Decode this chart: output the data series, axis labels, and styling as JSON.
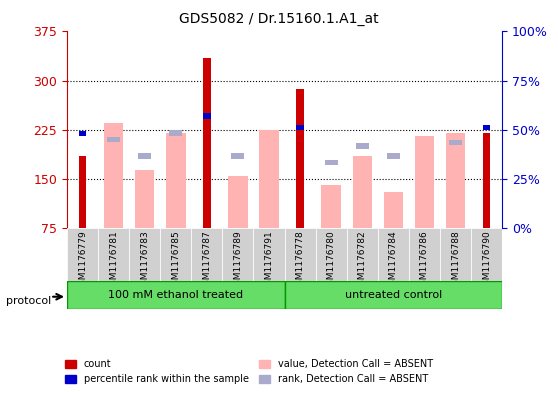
{
  "title": "GDS5082 / Dr.15160.1.A1_at",
  "samples": [
    "GSM1176779",
    "GSM1176781",
    "GSM1176783",
    "GSM1176785",
    "GSM1176787",
    "GSM1176789",
    "GSM1176791",
    "GSM1176778",
    "GSM1176780",
    "GSM1176782",
    "GSM1176784",
    "GSM1176786",
    "GSM1176788",
    "GSM1176790"
  ],
  "count_values": [
    185,
    0,
    0,
    0,
    335,
    0,
    0,
    287,
    0,
    0,
    0,
    0,
    0,
    220
  ],
  "percentile_values": [
    48,
    0,
    0,
    0,
    57,
    0,
    0,
    51,
    0,
    0,
    0,
    0,
    0,
    51
  ],
  "absent_value_values": [
    0,
    235,
    163,
    220,
    0,
    155,
    225,
    0,
    140,
    185,
    130,
    215,
    220,
    0
  ],
  "absent_rank_values": [
    0,
    210,
    185,
    220,
    0,
    185,
    0,
    0,
    175,
    200,
    185,
    0,
    205,
    0
  ],
  "ylim_left": [
    75,
    375
  ],
  "ylim_right": [
    0,
    100
  ],
  "yticks_left": [
    75,
    150,
    225,
    300,
    375
  ],
  "yticks_right": [
    0,
    25,
    50,
    75,
    100
  ],
  "group1_label": "100 mM ethanol treated",
  "group2_label": "untreated control",
  "group1_indices": [
    0,
    1,
    2,
    3,
    4,
    5,
    6
  ],
  "group2_indices": [
    7,
    8,
    9,
    10,
    11,
    12,
    13
  ],
  "protocol_label": "protocol",
  "legend_items": [
    {
      "label": "count",
      "color": "#cc0000",
      "marker": "s"
    },
    {
      "label": "percentile rank within the sample",
      "color": "#0000cc",
      "marker": "s"
    },
    {
      "label": "value, Detection Call = ABSENT",
      "color": "#ffaaaa",
      "marker": "s"
    },
    {
      "label": "rank, Detection Call = ABSENT",
      "color": "#aaaacc",
      "marker": "s"
    }
  ],
  "bar_width": 0.35,
  "count_color": "#cc0000",
  "percentile_color": "#0000cc",
  "absent_value_color": "#ffb3b3",
  "absent_rank_color": "#aaaacc",
  "bg_color": "#ffffff",
  "grid_color": "#000000",
  "group1_bg": "#66dd66",
  "group2_bg": "#66dd66",
  "tick_label_color_left": "#cc0000",
  "tick_label_color_right": "#0000cc"
}
